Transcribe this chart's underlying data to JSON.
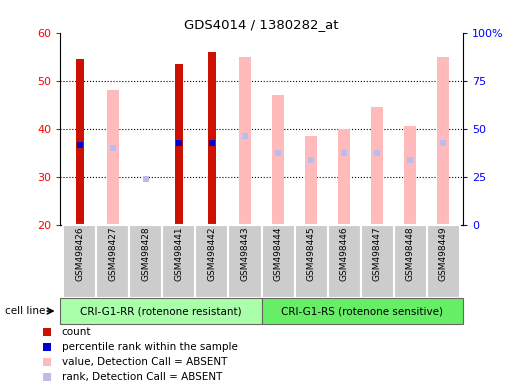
{
  "title": "GDS4014 / 1380282_at",
  "samples": [
    "GSM498426",
    "GSM498427",
    "GSM498428",
    "GSM498441",
    "GSM498442",
    "GSM498443",
    "GSM498444",
    "GSM498445",
    "GSM498446",
    "GSM498447",
    "GSM498448",
    "GSM498449"
  ],
  "group1_count": 6,
  "group2_count": 6,
  "group1_label": "CRI-G1-RR (rotenone resistant)",
  "group2_label": "CRI-G1-RS (rotenone sensitive)",
  "cell_line_label": "cell line",
  "ylim_left": [
    20,
    60
  ],
  "ylim_right": [
    0,
    100
  ],
  "yticks_left": [
    20,
    30,
    40,
    50,
    60
  ],
  "yticks_right": [
    0,
    25,
    50,
    75,
    100
  ],
  "yticklabels_right": [
    "0",
    "25",
    "50",
    "75",
    "100%"
  ],
  "red_bars": [
    54.5,
    null,
    null,
    53.5,
    56.0,
    null,
    null,
    null,
    null,
    null,
    null,
    null
  ],
  "blue_dots": [
    36.5,
    null,
    null,
    37.0,
    37.0,
    null,
    null,
    null,
    null,
    null,
    null,
    null
  ],
  "pink_bars_bottom": [
    20,
    20,
    24.5,
    20,
    20,
    20,
    20,
    20,
    20,
    20,
    20,
    20
  ],
  "pink_bars_top": [
    null,
    48.0,
    24.5,
    null,
    null,
    55.0,
    47.0,
    38.5,
    40.0,
    44.5,
    40.5,
    55.0
  ],
  "lavender_dots": [
    null,
    36.0,
    29.5,
    null,
    null,
    38.5,
    35.0,
    33.5,
    35.0,
    35.0,
    33.5,
    37.0
  ],
  "group1_color": "#aaffaa",
  "group2_color": "#66ee66",
  "tick_area_color": "#cccccc",
  "red_color": "#cc1100",
  "blue_color": "#0000cc",
  "pink_color": "#ffbbbb",
  "lavender_color": "#bbbbee",
  "legend_items": [
    "count",
    "percentile rank within the sample",
    "value, Detection Call = ABSENT",
    "rank, Detection Call = ABSENT"
  ],
  "legend_colors": [
    "#cc1100",
    "#0000cc",
    "#ffbbbb",
    "#bbbbee"
  ]
}
